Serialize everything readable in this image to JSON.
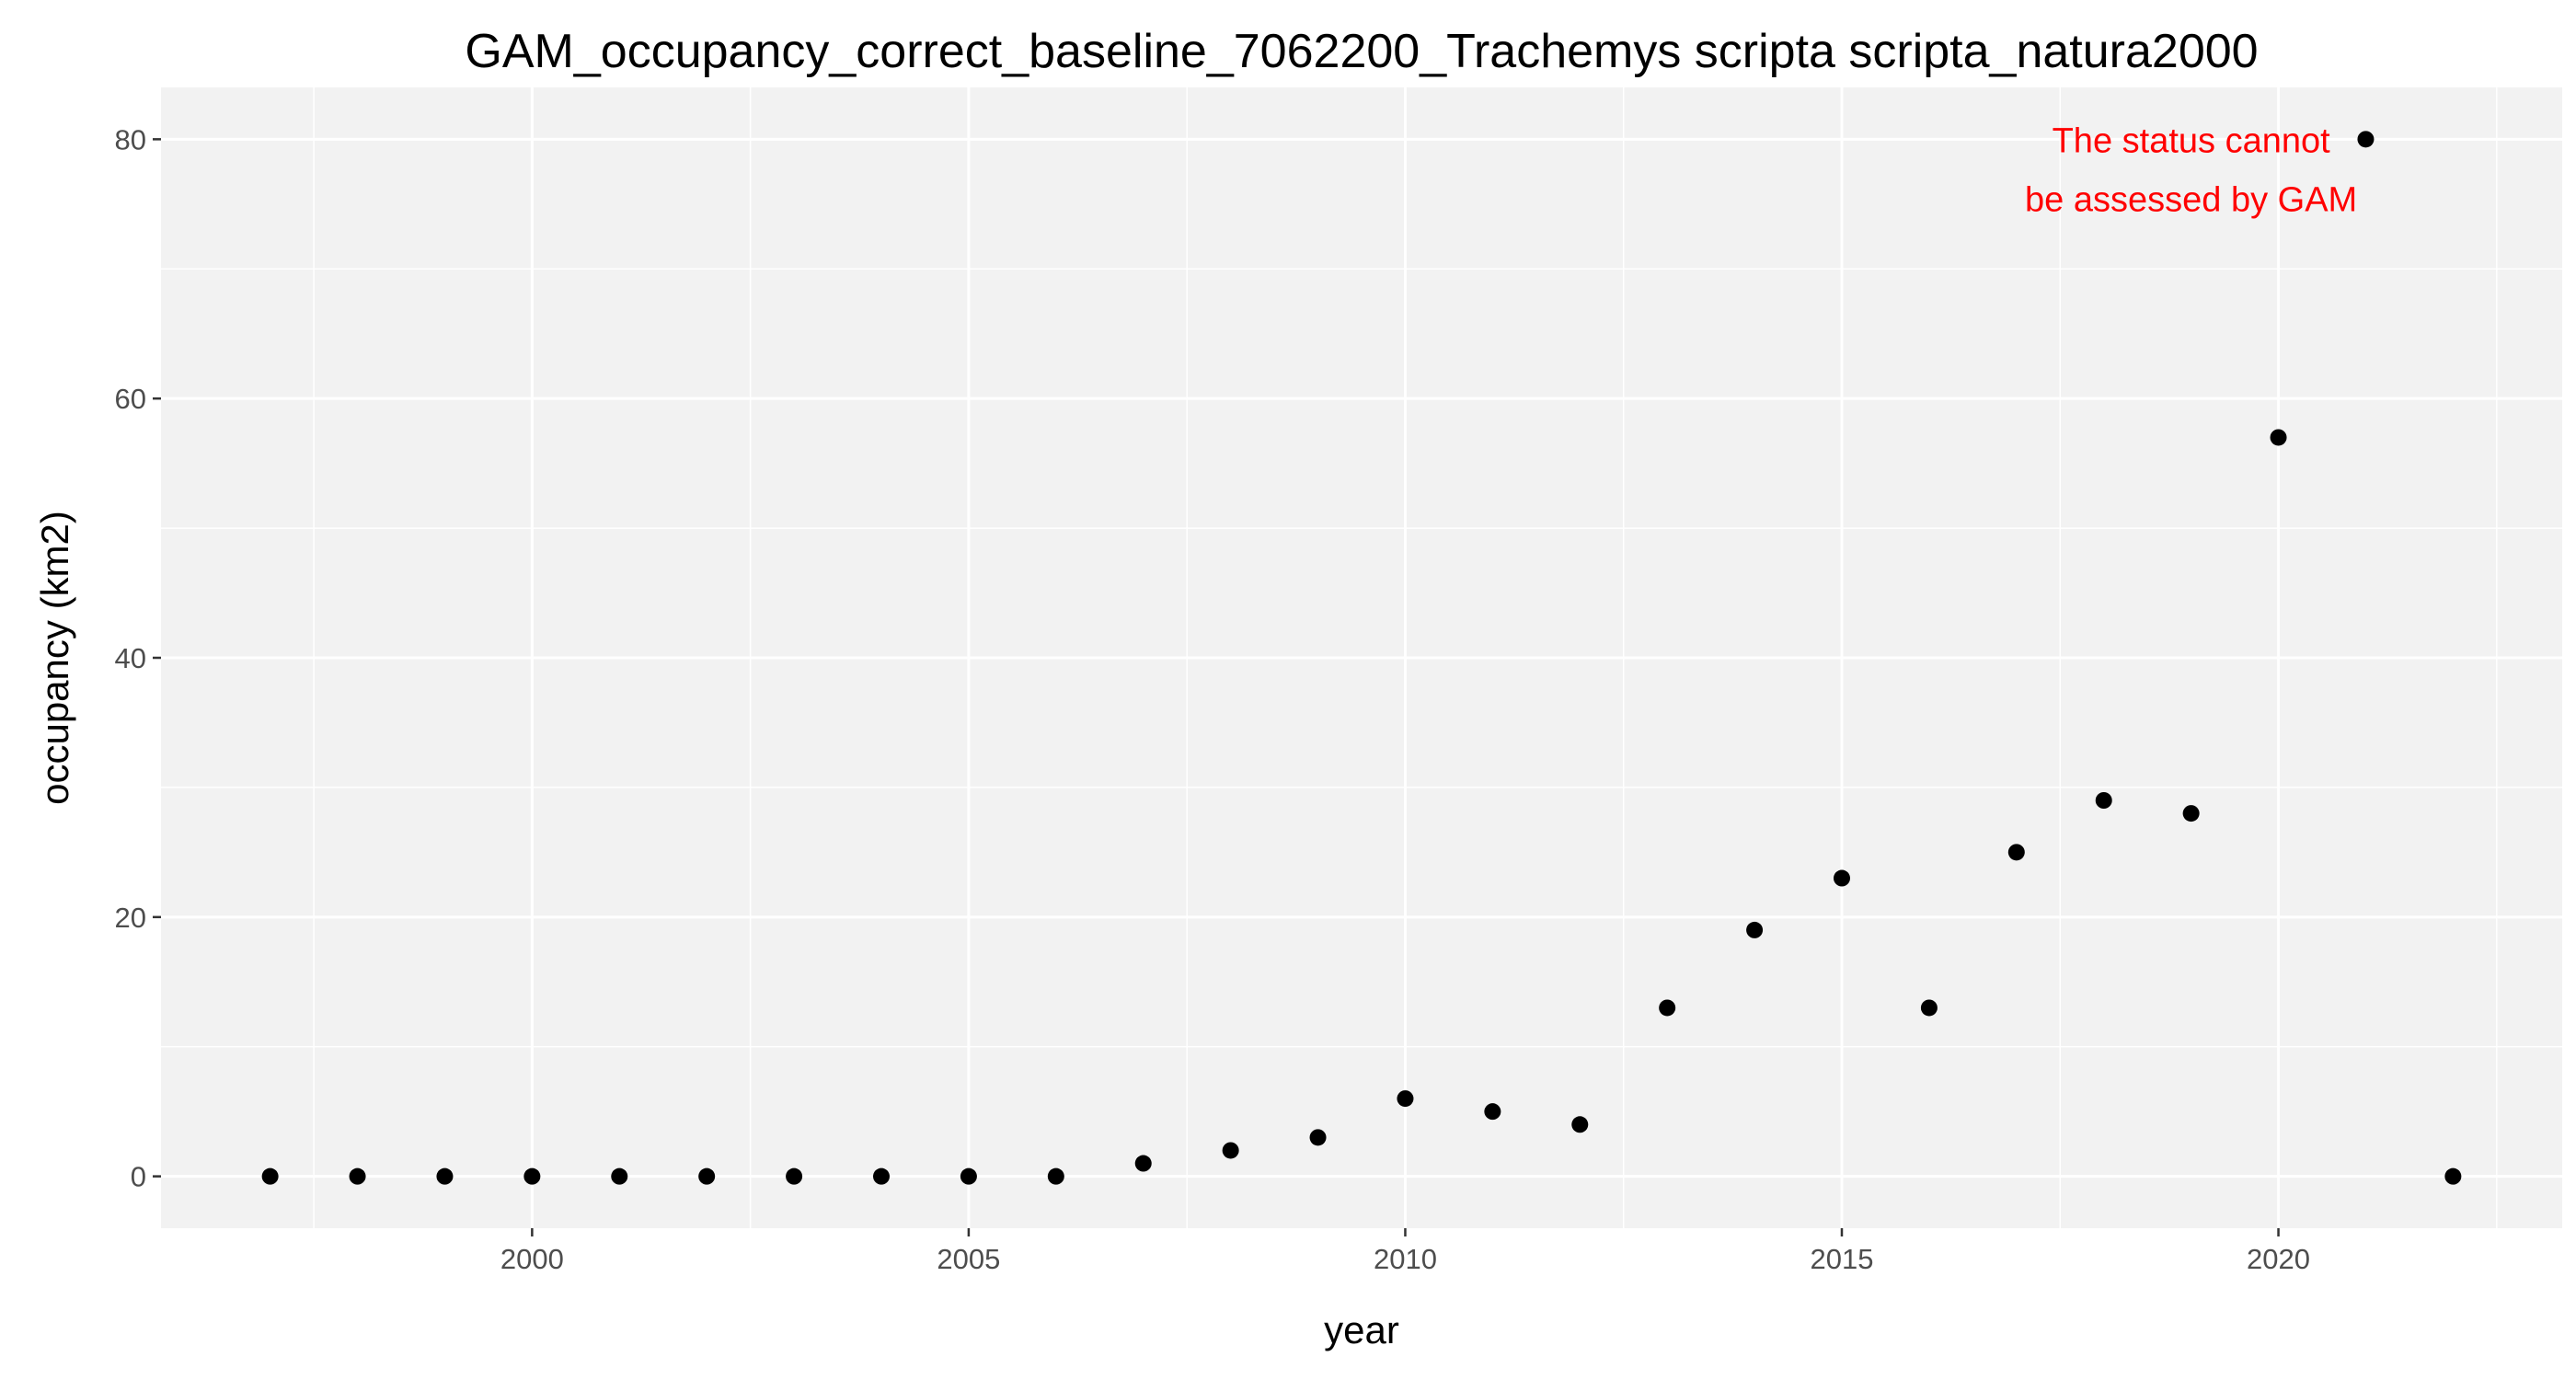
{
  "chart_data": {
    "type": "scatter",
    "title": "GAM_occupancy_correct_baseline_7062200_Trachemys scripta scripta_natura2000",
    "xlabel": "year",
    "ylabel": "occupancy (km2)",
    "xlim": [
      1995.75,
      2023.25
    ],
    "ylim": [
      -4,
      84
    ],
    "x_ticks": [
      2000,
      2005,
      2010,
      2015,
      2020
    ],
    "y_ticks": [
      0,
      20,
      40,
      60,
      80
    ],
    "x_tick_labels": [
      "2000",
      "2005",
      "2010",
      "2015",
      "2020"
    ],
    "y_tick_labels": [
      "0",
      "20",
      "40",
      "60",
      "80"
    ],
    "grid": true,
    "legend": "none",
    "colors": {
      "panel": "#f2f2f2",
      "grid": "#ffffff",
      "points": "#000000",
      "annotation": "#ff0000"
    },
    "x": [
      1997,
      1998,
      1999,
      2000,
      2001,
      2002,
      2003,
      2004,
      2005,
      2006,
      2007,
      2008,
      2009,
      2010,
      2011,
      2012,
      2013,
      2014,
      2015,
      2016,
      2017,
      2018,
      2019,
      2020,
      2021,
      2022
    ],
    "y": [
      0,
      0,
      0,
      0,
      0,
      0,
      0,
      0,
      0,
      0,
      1,
      2,
      3,
      6,
      5,
      4,
      13,
      19,
      23,
      13,
      25,
      29,
      28,
      57,
      80,
      0
    ],
    "annotation": {
      "lines": [
        "The status cannot",
        "be assessed by GAM"
      ],
      "x": 2019,
      "y": 79
    }
  }
}
